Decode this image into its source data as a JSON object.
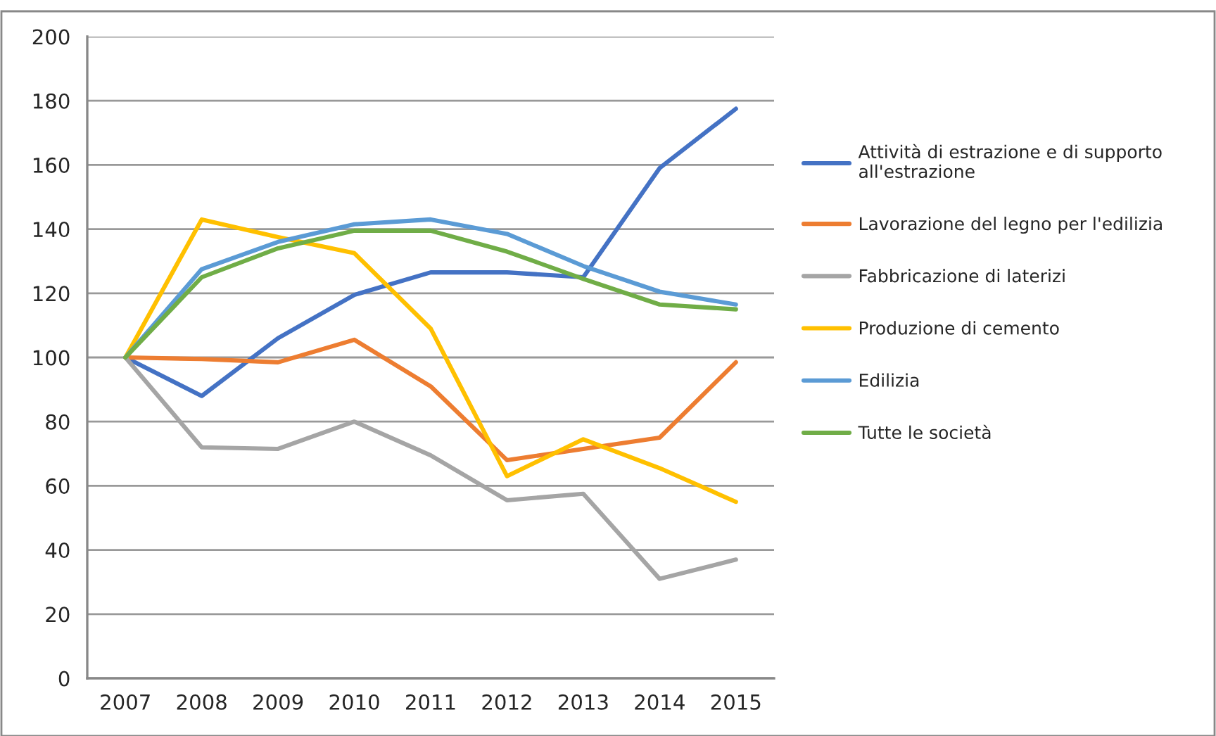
{
  "chart_data": {
    "type": "line",
    "categories": [
      "2007",
      "2008",
      "2009",
      "2010",
      "2011",
      "2012",
      "2013",
      "2014",
      "2015"
    ],
    "series": [
      {
        "name": "Attività di estrazione e di supporto all'estrazione",
        "color": "#4472c4",
        "values": [
          100,
          88,
          106,
          119.5,
          126.5,
          126.5,
          125,
          159,
          177.5
        ]
      },
      {
        "name": "Lavorazione del legno per l'edilizia",
        "color": "#ed7d31",
        "values": [
          100,
          99.5,
          98.5,
          105.5,
          91,
          68,
          71.5,
          75,
          98.5
        ]
      },
      {
        "name": "Fabbricazione di laterizi",
        "color": "#a5a5a5",
        "values": [
          100,
          72,
          71.5,
          80,
          69.5,
          55.5,
          57.5,
          31,
          37
        ]
      },
      {
        "name": "Produzione di cemento",
        "color": "#ffc000",
        "values": [
          100,
          143,
          137.5,
          132.5,
          109,
          63,
          74.5,
          65.5,
          55
        ]
      },
      {
        "name": "Edilizia",
        "color": "#5b9bd5",
        "values": [
          100,
          127.5,
          136,
          141.5,
          143,
          138.5,
          128.5,
          120.5,
          116.5
        ]
      },
      {
        "name": "Tutte le società",
        "color": "#70ad47",
        "values": [
          100,
          125,
          134,
          139.5,
          139.5,
          133,
          124.5,
          116.5,
          115
        ]
      }
    ],
    "ylim": [
      0,
      200
    ],
    "yticks": [
      0,
      20,
      40,
      60,
      80,
      100,
      120,
      140,
      160,
      180,
      200
    ],
    "grid": "y",
    "legend": "right",
    "marker": "none",
    "line_style": "solid"
  }
}
